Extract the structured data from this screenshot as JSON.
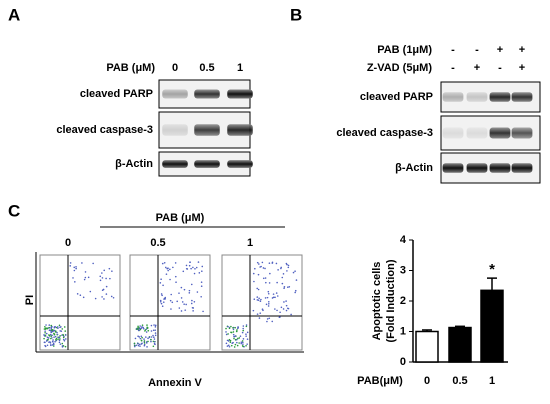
{
  "panel_a": {
    "label": "A",
    "header": "PAB (μM)",
    "doses": [
      "0",
      "0.5",
      "1"
    ],
    "rows": [
      "cleaved PARP",
      "cleaved caspase-3",
      "β-Actin"
    ]
  },
  "panel_b": {
    "label": "B",
    "treatments": [
      {
        "name": "PAB (1μM)",
        "signs": [
          "-",
          "-",
          "+",
          "+"
        ]
      },
      {
        "name": "Z-VAD (5μM)",
        "signs": [
          "-",
          "+",
          "-",
          "+"
        ]
      }
    ],
    "rows": [
      "cleaved PARP",
      "cleaved caspase-3",
      "β-Actin"
    ]
  },
  "panel_c": {
    "label": "C",
    "header": "PAB (μM)",
    "doses": [
      "0",
      "0.5",
      "1"
    ],
    "y_label": "PI",
    "x_label": "Annexin V"
  },
  "chart_data": {
    "type": "bar",
    "y_label": [
      "Apoptotic cells",
      "(Fold Induction)"
    ],
    "x_label": "PAB(μM)",
    "categories": [
      "0",
      "0.5",
      "1"
    ],
    "values": [
      1.0,
      1.13,
      2.35
    ],
    "errors": [
      0.05,
      0.04,
      0.4
    ],
    "colors": [
      "#ffffff",
      "#000000",
      "#000000"
    ],
    "ylim": [
      0,
      4
    ],
    "yticks": [
      0,
      1,
      2,
      3,
      4
    ],
    "annotations": [
      {
        "category": 2,
        "text": "*"
      }
    ]
  }
}
